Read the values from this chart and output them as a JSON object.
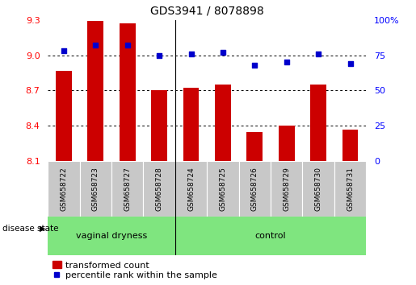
{
  "title": "GDS3941 / 8078898",
  "samples": [
    "GSM658722",
    "GSM658723",
    "GSM658727",
    "GSM658728",
    "GSM658724",
    "GSM658725",
    "GSM658726",
    "GSM658729",
    "GSM658730",
    "GSM658731"
  ],
  "bar_values": [
    8.87,
    9.29,
    9.27,
    8.7,
    8.72,
    8.75,
    8.35,
    8.4,
    8.75,
    8.37
  ],
  "percentile_values": [
    78,
    82,
    82,
    75,
    76,
    77,
    68,
    70,
    76,
    69
  ],
  "group_boundary": 4,
  "group_labels": [
    "vaginal dryness",
    "control"
  ],
  "ymin": 8.1,
  "ymax": 9.3,
  "yticks": [
    8.1,
    8.4,
    8.7,
    9.0,
    9.3
  ],
  "ytick_labels": [
    "8.1",
    "8.4",
    "8.7",
    "9.0",
    "9.3"
  ],
  "y2min": 0,
  "y2max": 100,
  "y2ticks": [
    0,
    25,
    50,
    75,
    100
  ],
  "y2tick_labels": [
    "0",
    "25",
    "50",
    "75",
    "100%"
  ],
  "bar_color": "#cc0000",
  "dot_color": "#0000cc",
  "group_color": "#7FE57F",
  "sample_box_color": "#c8c8c8",
  "label_transformed": "transformed count",
  "label_percentile": "percentile rank within the sample",
  "disease_state_label": "disease state",
  "bar_width": 0.5,
  "title_fontsize": 10,
  "axis_fontsize": 8,
  "sample_fontsize": 6.5,
  "group_fontsize": 8,
  "legend_fontsize": 8
}
